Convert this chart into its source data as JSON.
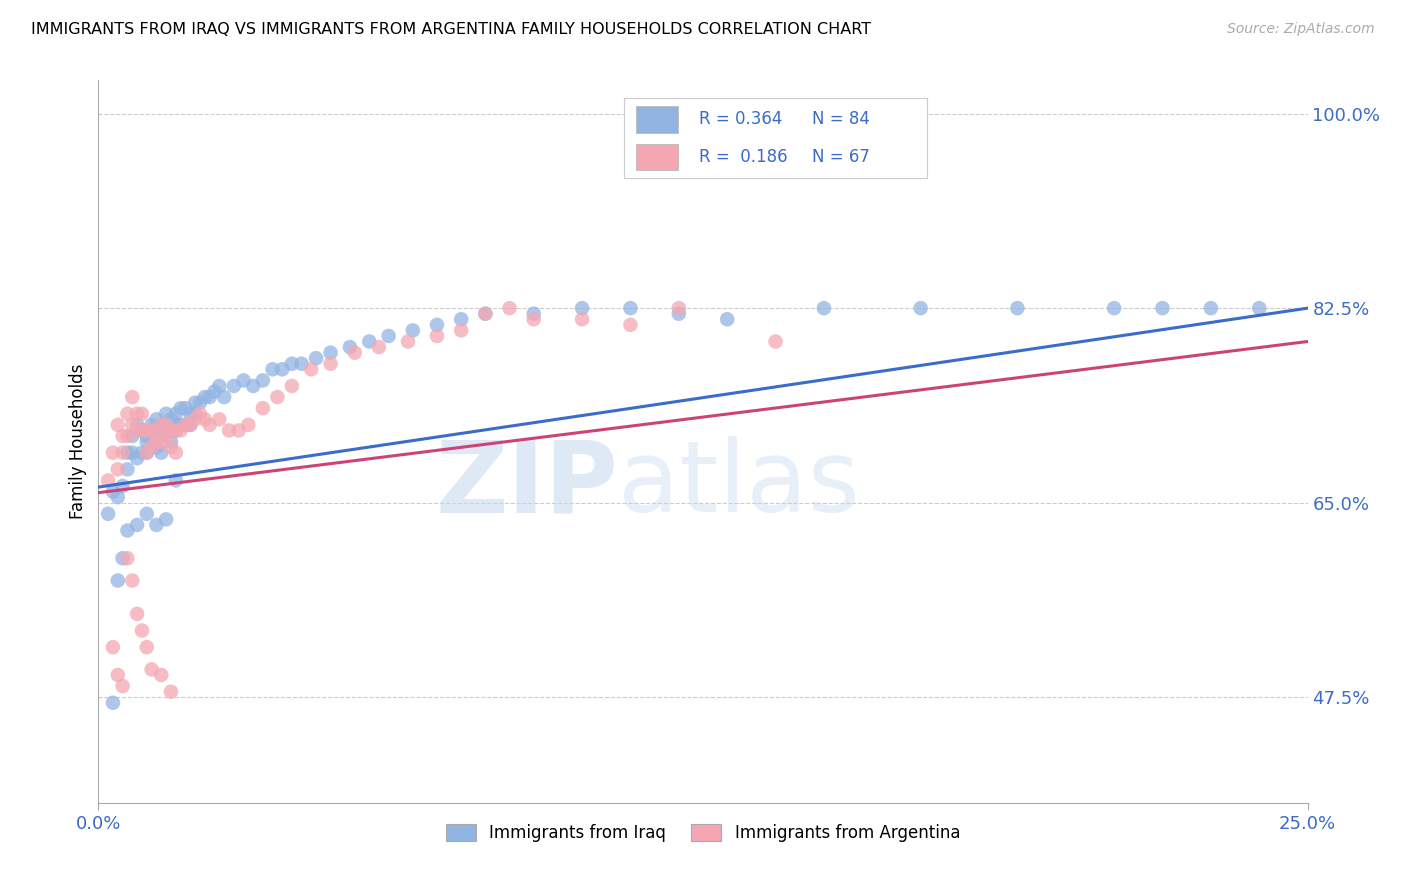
{
  "title": "IMMIGRANTS FROM IRAQ VS IMMIGRANTS FROM ARGENTINA FAMILY HOUSEHOLDS CORRELATION CHART",
  "source": "Source: ZipAtlas.com",
  "ylabel": "Family Households",
  "xlim": [
    0.0,
    0.25
  ],
  "ylim": [
    0.38,
    1.03
  ],
  "yticks": [
    0.475,
    0.65,
    0.825,
    1.0
  ],
  "ytick_labels": [
    "47.5%",
    "65.0%",
    "82.5%",
    "100.0%"
  ],
  "xticks": [
    0.0,
    0.25
  ],
  "xtick_labels": [
    "0.0%",
    "25.0%"
  ],
  "legend_R1": "0.364",
  "legend_N1": "84",
  "legend_R2": "0.186",
  "legend_N2": "67",
  "label1": "Immigrants from Iraq",
  "label2": "Immigrants from Argentina",
  "color1": "#92B4E3",
  "color2": "#F4A7B2",
  "trendline_color1": "#3B6CC9",
  "trendline_color2": "#CC4477",
  "background_color": "#ffffff",
  "grid_color": "#cccccc",
  "tick_color": "#3B6CC9",
  "iraq_x": [
    0.002,
    0.003,
    0.004,
    0.005,
    0.005,
    0.006,
    0.006,
    0.007,
    0.007,
    0.008,
    0.008,
    0.009,
    0.009,
    0.01,
    0.01,
    0.01,
    0.011,
    0.011,
    0.011,
    0.012,
    0.012,
    0.012,
    0.013,
    0.013,
    0.013,
    0.014,
    0.014,
    0.015,
    0.015,
    0.015,
    0.016,
    0.016,
    0.016,
    0.017,
    0.017,
    0.018,
    0.018,
    0.019,
    0.019,
    0.02,
    0.02,
    0.021,
    0.022,
    0.023,
    0.024,
    0.025,
    0.026,
    0.028,
    0.03,
    0.032,
    0.034,
    0.036,
    0.038,
    0.04,
    0.042,
    0.045,
    0.048,
    0.052,
    0.056,
    0.06,
    0.065,
    0.07,
    0.075,
    0.08,
    0.09,
    0.1,
    0.11,
    0.12,
    0.13,
    0.15,
    0.17,
    0.19,
    0.21,
    0.22,
    0.23,
    0.24,
    0.003,
    0.004,
    0.006,
    0.008,
    0.01,
    0.012,
    0.014,
    0.016
  ],
  "iraq_y": [
    0.64,
    0.66,
    0.655,
    0.6,
    0.665,
    0.68,
    0.695,
    0.71,
    0.695,
    0.72,
    0.69,
    0.715,
    0.695,
    0.705,
    0.71,
    0.695,
    0.72,
    0.715,
    0.7,
    0.725,
    0.715,
    0.7,
    0.72,
    0.71,
    0.695,
    0.73,
    0.715,
    0.725,
    0.715,
    0.705,
    0.73,
    0.72,
    0.715,
    0.735,
    0.72,
    0.735,
    0.72,
    0.73,
    0.72,
    0.74,
    0.73,
    0.74,
    0.745,
    0.745,
    0.75,
    0.755,
    0.745,
    0.755,
    0.76,
    0.755,
    0.76,
    0.77,
    0.77,
    0.775,
    0.775,
    0.78,
    0.785,
    0.79,
    0.795,
    0.8,
    0.805,
    0.81,
    0.815,
    0.82,
    0.82,
    0.825,
    0.825,
    0.82,
    0.815,
    0.825,
    0.825,
    0.825,
    0.825,
    0.825,
    0.825,
    0.825,
    0.47,
    0.58,
    0.625,
    0.63,
    0.64,
    0.63,
    0.635,
    0.67
  ],
  "argentina_x": [
    0.002,
    0.003,
    0.004,
    0.004,
    0.005,
    0.005,
    0.006,
    0.006,
    0.007,
    0.007,
    0.008,
    0.008,
    0.009,
    0.009,
    0.01,
    0.01,
    0.011,
    0.011,
    0.012,
    0.012,
    0.013,
    0.013,
    0.014,
    0.014,
    0.015,
    0.015,
    0.016,
    0.016,
    0.017,
    0.018,
    0.019,
    0.02,
    0.021,
    0.022,
    0.023,
    0.025,
    0.027,
    0.029,
    0.031,
    0.034,
    0.037,
    0.04,
    0.044,
    0.048,
    0.053,
    0.058,
    0.064,
    0.07,
    0.075,
    0.08,
    0.085,
    0.09,
    0.1,
    0.11,
    0.12,
    0.14,
    0.003,
    0.004,
    0.005,
    0.006,
    0.007,
    0.008,
    0.009,
    0.01,
    0.011,
    0.013,
    0.015
  ],
  "argentina_y": [
    0.67,
    0.695,
    0.68,
    0.72,
    0.71,
    0.695,
    0.73,
    0.71,
    0.745,
    0.72,
    0.73,
    0.715,
    0.73,
    0.715,
    0.715,
    0.695,
    0.715,
    0.7,
    0.715,
    0.705,
    0.72,
    0.705,
    0.72,
    0.71,
    0.715,
    0.7,
    0.715,
    0.695,
    0.715,
    0.72,
    0.72,
    0.725,
    0.73,
    0.725,
    0.72,
    0.725,
    0.715,
    0.715,
    0.72,
    0.735,
    0.745,
    0.755,
    0.77,
    0.775,
    0.785,
    0.79,
    0.795,
    0.8,
    0.805,
    0.82,
    0.825,
    0.815,
    0.815,
    0.81,
    0.825,
    0.795,
    0.52,
    0.495,
    0.485,
    0.6,
    0.58,
    0.55,
    0.535,
    0.52,
    0.5,
    0.495,
    0.48
  ],
  "trendline_iraq_x0": 0.0,
  "trendline_iraq_y0": 0.664,
  "trendline_iraq_x1": 0.25,
  "trendline_iraq_y1": 0.825,
  "trendline_arg_x0": 0.0,
  "trendline_arg_y0": 0.659,
  "trendline_arg_x1": 0.25,
  "trendline_arg_y1": 0.795
}
